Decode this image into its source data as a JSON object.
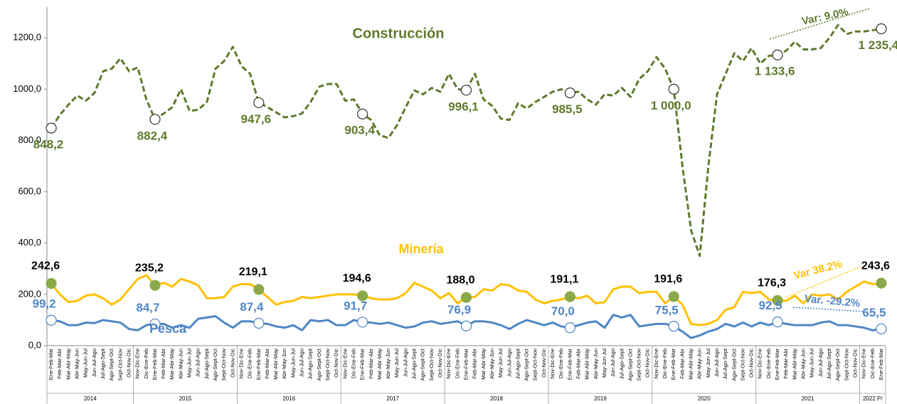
{
  "chart_data": {
    "type": "line",
    "categories": [
      "Ene-Feb-Mar",
      "Feb-Mar-Abr",
      "Mar-Abr-May",
      "Abr-May-Jun",
      "May-Jun-Jul",
      "Jun-Jul-Ago",
      "Jul-Ago-Sept",
      "Ago-Sept-Oct",
      "Sept-Oct-Nov",
      "Oct-Nov-Dic",
      "Nov-Dic-Ene",
      "Dic-Ene-Feb",
      "Ene-Feb-Mar",
      "Feb-Mar-Abr",
      "Mar-Abr-May",
      "Abr-May-Jun",
      "May-Jun-Jul",
      "Jun-Jul-Ago",
      "Jul-Ago-Sept",
      "Ago-Sept-Oct",
      "Sept-Oct-Nov",
      "Oct-Nov-Dic",
      "Nov-Dic-Ene",
      "Dic-Ene-Feb",
      "Ene-Feb-Mar",
      "Feb-Mar-Abr",
      "Mar-Abr-May",
      "Abr-May-Jun",
      "May-Jun-Jul",
      "Jun-Jul-Ago",
      "Jul-Ago-Sept",
      "Ago-Sept-Oct",
      "Sept-Oct-Nov",
      "Oct-Nov-Dic",
      "Nov-Dic-Ene",
      "Dic-Ene-Feb",
      "Ene-Feb-Mar",
      "Feb-Mar-Abr",
      "Mar-Abr-May",
      "Abr-May-Jun",
      "May-Jun-Jul",
      "Jun-Jul-Ago",
      "Jul-Ago-Sept",
      "Ago-Sept-Oct",
      "Sept-Oct-Nov",
      "Oct-Nov-Dic",
      "Nov-Dic-Ene",
      "Dic-Ene-Feb",
      "Ene-Feb-Mar",
      "Feb-Mar-Abr",
      "Mar-Abr-May",
      "Abr-May-Jun",
      "May-Jun-Jul",
      "Jun-Jul-Ago",
      "Jul-Ago-Sept",
      "Ago-Sept-Oct",
      "Sept-Oct-Nov",
      "Oct-Nov-Dic",
      "Nov-Dic-Ene",
      "Dic-Ene-Feb",
      "Ene-Feb-Mar",
      "Feb-Mar-Abr",
      "Mar-Abr-May",
      "Abr-May-Jun",
      "May-Jun-Jul",
      "Jun-Jul-Ago",
      "Jul-Ago-Sept",
      "Ago-Sept-Oct",
      "Sept-Oct-Nov",
      "Oct-Nov-Dic",
      "Nov-Dic-Ene",
      "Dic-Ene-Feb",
      "Ene-Feb-Mar",
      "Feb-Mar-Abr",
      "Mar-Abr-May",
      "Abr-May-Jun",
      "May-Jun-Jul",
      "Jun-Jul-Ago",
      "Jul-Ago-Sept",
      "Ago-Sept-Oct",
      "Sept-Oct-Nov",
      "Oct-Nov-Dic",
      "Nov-Dic-Ene",
      "Dic-Ene-Feb",
      "Ene-Feb-Mar",
      "Feb-Mar-Abr",
      "Mar-Abr-May",
      "Abr-May-Jun",
      "May-Jun-Jul",
      "Jun-Jul-Ago",
      "Jul-Ago-Sept",
      "Ago-Sept-Oct",
      "Sept-Oct-Nov",
      "Oct-Nov-Dic",
      "Nov-Dic-Ene",
      "Dic-Ene-Feb",
      "Ene-Feb-Mar"
    ],
    "year_groups": [
      {
        "label": "2014",
        "count": 10
      },
      {
        "label": "2015",
        "count": 12
      },
      {
        "label": "2016",
        "count": 12
      },
      {
        "label": "2017",
        "count": 12
      },
      {
        "label": "2018",
        "count": 12
      },
      {
        "label": "2019",
        "count": 12
      },
      {
        "label": "2020",
        "count": 12
      },
      {
        "label": "2021",
        "count": 12
      },
      {
        "label": "2022 P/",
        "count": 3
      }
    ],
    "series": [
      {
        "name": "Construcción",
        "color": "#5e7a2c",
        "dashed": true,
        "marker_fill": "#ffffff",
        "values": [
          848.2,
          900,
          940,
          975,
          955,
          985,
          1070,
          1080,
          1120,
          1070,
          1085,
          960,
          882.4,
          905,
          930,
          1000,
          915,
          920,
          950,
          1080,
          1110,
          1165,
          1090,
          1060,
          947.6,
          930,
          910,
          890,
          895,
          905,
          950,
          1010,
          1020,
          1020,
          955,
          960,
          903.4,
          880,
          820,
          810,
          860,
          930,
          995,
          980,
          1005,
          990,
          1060,
          1000,
          996.1,
          1060,
          960,
          935,
          885,
          880,
          945,
          925,
          950,
          970,
          990,
          1000,
          985.5,
          990,
          960,
          940,
          980,
          975,
          1005,
          970,
          1040,
          1070,
          1125,
          1080,
          1000.0,
          700,
          450,
          350,
          700,
          980,
          1060,
          1140,
          1110,
          1160,
          1100,
          1130,
          1133.6,
          1150,
          1185,
          1155,
          1155,
          1160,
          1200,
          1250,
          1215,
          1225,
          1225,
          1230,
          1235.4
        ],
        "value_labels": [
          "848,2",
          null,
          null,
          null,
          null,
          null,
          null,
          null,
          null,
          null,
          null,
          null,
          "882,4",
          null,
          null,
          null,
          null,
          null,
          null,
          null,
          null,
          null,
          null,
          null,
          "947,6",
          null,
          null,
          null,
          null,
          null,
          null,
          null,
          null,
          null,
          null,
          null,
          "903,4",
          null,
          null,
          null,
          null,
          null,
          null,
          null,
          null,
          null,
          null,
          null,
          "996,1",
          null,
          null,
          null,
          null,
          null,
          null,
          null,
          null,
          null,
          null,
          null,
          "985,5",
          null,
          null,
          null,
          null,
          null,
          null,
          null,
          null,
          null,
          null,
          null,
          "1 000,0",
          null,
          null,
          null,
          null,
          null,
          null,
          null,
          null,
          null,
          null,
          null,
          "1 133,6",
          null,
          null,
          null,
          null,
          null,
          null,
          null,
          null,
          null,
          null,
          null,
          "1 235,4"
        ]
      },
      {
        "name": "Minería",
        "color": "#ffc000",
        "dashed": false,
        "marker_fill": "#8aaa4a",
        "values": [
          242.6,
          200,
          170,
          175,
          195,
          200,
          185,
          160,
          180,
          220,
          260,
          275,
          235.2,
          245,
          230,
          260,
          250,
          235,
          185,
          185,
          190,
          230,
          240,
          240,
          219.1,
          190,
          160,
          170,
          175,
          190,
          185,
          190,
          195,
          200,
          200,
          200,
          194.6,
          185,
          180,
          180,
          185,
          205,
          245,
          230,
          215,
          185,
          205,
          165,
          188.0,
          190,
          220,
          215,
          240,
          235,
          215,
          210,
          180,
          165,
          175,
          180,
          191.1,
          185,
          195,
          165,
          170,
          220,
          230,
          230,
          205,
          210,
          210,
          165,
          191.6,
          160,
          85,
          80,
          85,
          100,
          140,
          150,
          210,
          205,
          210,
          180,
          176.3,
          175,
          195,
          165,
          200,
          195,
          200,
          180,
          210,
          230,
          250,
          240,
          243.6
        ],
        "value_labels": [
          "242,6",
          null,
          null,
          null,
          null,
          null,
          null,
          null,
          null,
          null,
          null,
          null,
          "235,2",
          null,
          null,
          null,
          null,
          null,
          null,
          null,
          null,
          null,
          null,
          null,
          "219,1",
          null,
          null,
          null,
          null,
          null,
          null,
          null,
          null,
          null,
          null,
          null,
          "194,6",
          null,
          null,
          null,
          null,
          null,
          null,
          null,
          null,
          null,
          null,
          null,
          "188,0",
          null,
          null,
          null,
          null,
          null,
          null,
          null,
          null,
          null,
          null,
          null,
          "191,1",
          null,
          null,
          null,
          null,
          null,
          null,
          null,
          null,
          null,
          null,
          null,
          "191,6",
          null,
          null,
          null,
          null,
          null,
          null,
          null,
          null,
          null,
          null,
          null,
          "176,3",
          null,
          null,
          null,
          null,
          null,
          null,
          null,
          null,
          null,
          null,
          null,
          "243,6"
        ]
      },
      {
        "name": "Pesca",
        "color": "#4f86c6",
        "dashed": false,
        "marker_fill": "#ffffff",
        "values": [
          99.2,
          95,
          80,
          80,
          90,
          88,
          100,
          95,
          90,
          65,
          60,
          80,
          84.7,
          85,
          70,
          80,
          70,
          105,
          110,
          115,
          90,
          70,
          95,
          95,
          87.4,
          85,
          75,
          70,
          80,
          60,
          100,
          95,
          100,
          80,
          80,
          100,
          91.7,
          90,
          85,
          90,
          80,
          70,
          75,
          90,
          95,
          85,
          90,
          95,
          76.9,
          95,
          95,
          90,
          80,
          65,
          85,
          100,
          90,
          80,
          90,
          75,
          70.0,
          80,
          90,
          95,
          70,
          120,
          110,
          120,
          75,
          80,
          85,
          85,
          75.5,
          55,
          30,
          40,
          55,
          65,
          85,
          75,
          90,
          75,
          90,
          80,
          92.5,
          85,
          80,
          80,
          80,
          90,
          95,
          80,
          80,
          75,
          70,
          60,
          65.5
        ],
        "value_labels": [
          "99,2",
          null,
          null,
          null,
          null,
          null,
          null,
          null,
          null,
          null,
          null,
          null,
          "84,7",
          null,
          null,
          null,
          null,
          null,
          null,
          null,
          null,
          null,
          null,
          null,
          "87,4",
          null,
          null,
          null,
          null,
          null,
          null,
          null,
          null,
          null,
          null,
          null,
          "91,7",
          null,
          null,
          null,
          null,
          null,
          null,
          null,
          null,
          null,
          null,
          null,
          "76,9",
          null,
          null,
          null,
          null,
          null,
          null,
          null,
          null,
          null,
          null,
          null,
          "70,0",
          null,
          null,
          null,
          null,
          null,
          null,
          null,
          null,
          null,
          null,
          null,
          "75,5",
          null,
          null,
          null,
          null,
          null,
          null,
          null,
          null,
          null,
          null,
          null,
          "92,5",
          null,
          null,
          null,
          null,
          null,
          null,
          null,
          null,
          null,
          null,
          null,
          "65,5"
        ]
      }
    ],
    "annotations": [
      "Var: 9.0%",
      "Var 38.2%",
      "Var. -29.2%"
    ],
    "ylim": [
      0,
      1320
    ],
    "yticks": [
      {
        "value": 0,
        "label": "0,0"
      },
      {
        "value": 200,
        "label": "200,0"
      },
      {
        "value": 400,
        "label": "400,0"
      },
      {
        "value": 600,
        "label": "600,0"
      },
      {
        "value": 800,
        "label": "800,0"
      },
      {
        "value": 1000,
        "label": "1000,0"
      },
      {
        "value": 1200,
        "label": "1200,0"
      }
    ],
    "grid": false
  }
}
